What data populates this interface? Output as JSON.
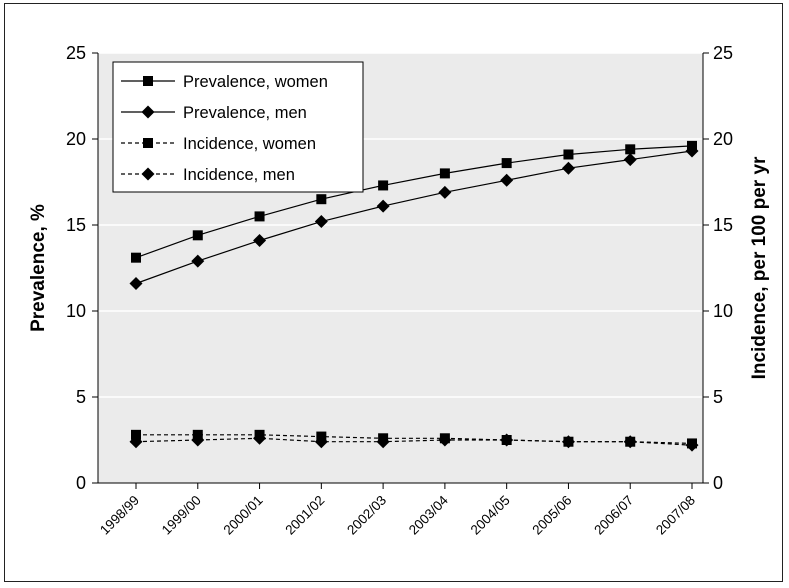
{
  "chart_data": {
    "type": "line",
    "ylabel_left": "Prevalence, %",
    "ylabel_right": "Incidence, per 100 per yr",
    "xlabel": "",
    "ylim": [
      0,
      25
    ],
    "y_ticks": [
      0,
      5,
      10,
      15,
      20,
      25
    ],
    "grid": "horizontal",
    "legend_position": "top-left",
    "categories": [
      "1998/99",
      "1999/00",
      "2000/01",
      "2001/02",
      "2002/03",
      "2003/04",
      "2004/05",
      "2005/06",
      "2006/07",
      "2007/08"
    ],
    "series": [
      {
        "name": "Prevalence, women",
        "marker": "square",
        "line_style": "solid",
        "axis": "left",
        "values": [
          13.1,
          14.4,
          15.5,
          16.5,
          17.3,
          18.0,
          18.6,
          19.1,
          19.4,
          19.6
        ]
      },
      {
        "name": "Prevalence, men",
        "marker": "diamond",
        "line_style": "solid",
        "axis": "left",
        "values": [
          11.6,
          12.9,
          14.1,
          15.2,
          16.1,
          16.9,
          17.6,
          18.3,
          18.8,
          19.3
        ]
      },
      {
        "name": "Incidence, women",
        "marker": "square",
        "line_style": "dashed",
        "axis": "right",
        "values": [
          2.8,
          2.8,
          2.8,
          2.7,
          2.6,
          2.6,
          2.5,
          2.4,
          2.4,
          2.3
        ]
      },
      {
        "name": "Incidence, men",
        "marker": "diamond",
        "line_style": "dashed",
        "axis": "right",
        "values": [
          2.4,
          2.5,
          2.6,
          2.4,
          2.4,
          2.5,
          2.5,
          2.4,
          2.4,
          2.2
        ]
      }
    ],
    "colors": {
      "plot_background": "#ebebeb",
      "grid": "#ffffff",
      "series": "#000000"
    }
  }
}
